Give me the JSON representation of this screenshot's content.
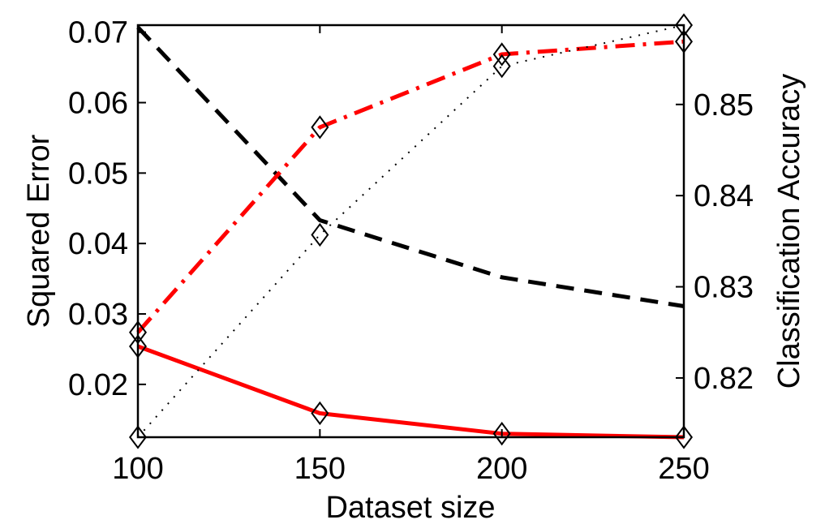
{
  "chart_data": {
    "type": "line",
    "xlabel": "Dataset size",
    "ylabel_left": "Squared Error",
    "ylabel_right": "Classification Accuracy",
    "x": [
      100,
      150,
      200,
      250
    ],
    "xlim": [
      100,
      250
    ],
    "ylim_left": [
      0.0125,
      0.071
    ],
    "ylim_right": [
      0.8135,
      0.8587
    ],
    "xticks": [
      "100",
      "150",
      "200",
      "250"
    ],
    "yticks_left": [
      "0.02",
      "0.03",
      "0.04",
      "0.05",
      "0.06",
      "0.07"
    ],
    "yticks_right": [
      "0.82",
      "0.83",
      "0.84",
      "0.85"
    ],
    "grid": false,
    "series": [
      {
        "axis": "left",
        "color": "#000000",
        "style": "dashed",
        "marker": "none",
        "values": [
          0.0707,
          0.0433,
          0.0352,
          0.0311
        ]
      },
      {
        "axis": "left",
        "color": "#ff0000",
        "style": "solid",
        "marker": "diamond",
        "values": [
          0.0254,
          0.0159,
          0.013,
          0.0125
        ]
      },
      {
        "axis": "right",
        "color": "#ff0000",
        "style": "dashdot",
        "marker": "diamond",
        "values": [
          0.825,
          0.8475,
          0.8555,
          0.8569
        ]
      },
      {
        "axis": "right",
        "color": "#000000",
        "style": "dotted",
        "marker": "diamond",
        "values": [
          0.8135,
          0.8357,
          0.8542,
          0.8587
        ]
      }
    ]
  }
}
